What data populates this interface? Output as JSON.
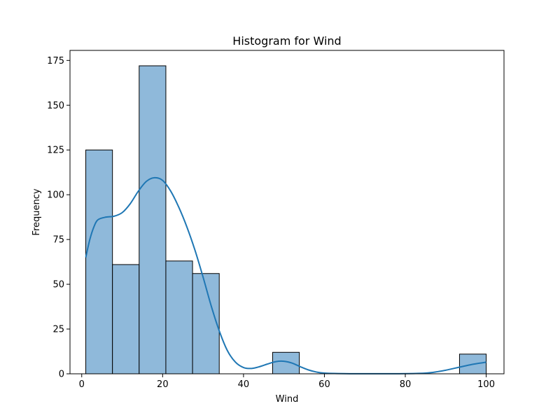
{
  "chart_data": {
    "type": "bar",
    "title": "Histogram for Wind",
    "xlabel": "Wind",
    "ylabel": "Frequency",
    "xlim": [
      -2.9,
      104.4
    ],
    "ylim": [
      0,
      180.6
    ],
    "xticks": [
      0,
      20,
      40,
      60,
      80,
      100
    ],
    "yticks": [
      0,
      25,
      50,
      75,
      100,
      125,
      150,
      175
    ],
    "grid": false,
    "colors": {
      "bar_fill": "#8fb9da",
      "bar_edge": "#000000",
      "kde_line": "#1f77b4"
    },
    "bins": [
      {
        "x0": 1.0,
        "x1": 7.6,
        "count": 125
      },
      {
        "x0": 7.6,
        "x1": 14.2,
        "count": 61
      },
      {
        "x0": 14.2,
        "x1": 20.8,
        "count": 172
      },
      {
        "x0": 20.8,
        "x1": 27.4,
        "count": 63
      },
      {
        "x0": 27.4,
        "x1": 34.0,
        "count": 56
      },
      {
        "x0": 34.0,
        "x1": 40.6,
        "count": 0
      },
      {
        "x0": 40.6,
        "x1": 47.2,
        "count": 0
      },
      {
        "x0": 47.2,
        "x1": 53.8,
        "count": 12
      },
      {
        "x0": 53.8,
        "x1": 60.4,
        "count": 0
      },
      {
        "x0": 60.4,
        "x1": 67.0,
        "count": 0
      },
      {
        "x0": 67.0,
        "x1": 73.6,
        "count": 0
      },
      {
        "x0": 73.6,
        "x1": 80.2,
        "count": 0
      },
      {
        "x0": 80.2,
        "x1": 86.8,
        "count": 0
      },
      {
        "x0": 86.8,
        "x1": 93.4,
        "count": 0
      },
      {
        "x0": 93.4,
        "x1": 100.0,
        "count": 11
      }
    ],
    "kde": [
      [
        1,
        65
      ],
      [
        2,
        75
      ],
      [
        3,
        82
      ],
      [
        4,
        86
      ],
      [
        6,
        87.5
      ],
      [
        8,
        88
      ],
      [
        10,
        90
      ],
      [
        12,
        95
      ],
      [
        14,
        102
      ],
      [
        16,
        107.5
      ],
      [
        18,
        109.5
      ],
      [
        20,
        108
      ],
      [
        22,
        102
      ],
      [
        24,
        93
      ],
      [
        26,
        82
      ],
      [
        28,
        69
      ],
      [
        30,
        54
      ],
      [
        32,
        38
      ],
      [
        34,
        24
      ],
      [
        36,
        13
      ],
      [
        38,
        6.5
      ],
      [
        40,
        3.5
      ],
      [
        42,
        3.0
      ],
      [
        44,
        4.0
      ],
      [
        46,
        5.5
      ],
      [
        48,
        6.8
      ],
      [
        50,
        7.0
      ],
      [
        52,
        6.0
      ],
      [
        54,
        4.0
      ],
      [
        56,
        2.2
      ],
      [
        58,
        1.0
      ],
      [
        60,
        0.4
      ],
      [
        65,
        0.1
      ],
      [
        70,
        0.05
      ],
      [
        75,
        0.05
      ],
      [
        80,
        0.1
      ],
      [
        85,
        0.4
      ],
      [
        88,
        1.2
      ],
      [
        90,
        2.0
      ],
      [
        92,
        3.0
      ],
      [
        94,
        4.0
      ],
      [
        96,
        5.0
      ],
      [
        98,
        5.8
      ],
      [
        100,
        6.5
      ]
    ]
  }
}
